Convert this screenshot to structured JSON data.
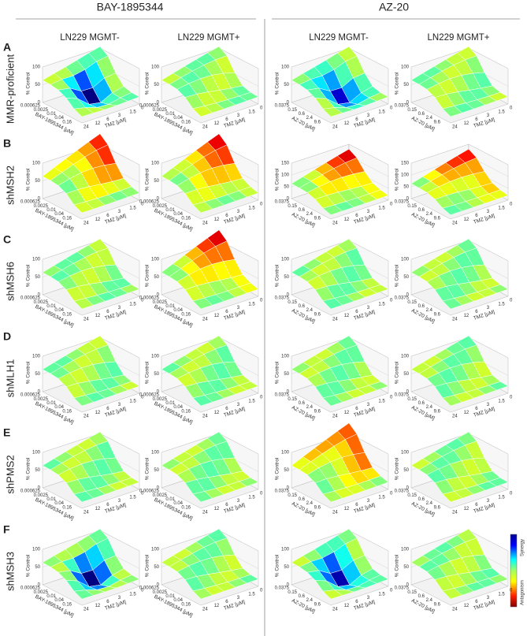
{
  "header": {
    "groups": [
      "BAY-1895344",
      "AZ-20"
    ],
    "columns": [
      "LN229 MGMT-",
      "LN229 MGMT+",
      "LN229 MGMT-",
      "LN229 MGMT+"
    ]
  },
  "rows": [
    {
      "letter": "A",
      "label": "MMR-proficient",
      "zticks": [
        [
          0,
          50,
          100
        ],
        [
          0,
          50,
          100
        ],
        [
          0,
          50,
          100
        ],
        [
          0,
          50,
          100
        ]
      ]
    },
    {
      "letter": "B",
      "label": "shMSH2",
      "zticks": [
        [
          0,
          50,
          100
        ],
        [
          0,
          50,
          100
        ],
        [
          0,
          50,
          100,
          150
        ],
        [
          0,
          50,
          100,
          150
        ]
      ]
    },
    {
      "letter": "C",
      "label": "shMSH6",
      "zticks": [
        [
          0,
          50,
          100
        ],
        [
          0,
          50,
          100
        ],
        [
          0,
          50,
          100
        ],
        [
          0,
          50,
          100
        ]
      ]
    },
    {
      "letter": "D",
      "label": "shMLH1",
      "zticks": [
        [
          0,
          50,
          100
        ],
        [
          0,
          50,
          100
        ],
        [
          0,
          50,
          100
        ],
        [
          0,
          50,
          100
        ]
      ]
    },
    {
      "letter": "E",
      "label": "shPMS2",
      "zticks": [
        [
          0,
          50,
          100
        ],
        [
          0,
          50,
          100
        ],
        [
          0,
          50,
          100
        ],
        [
          0,
          50,
          100
        ]
      ]
    },
    {
      "letter": "F",
      "label": "shMSH3",
      "zticks": [
        [
          0,
          50,
          100
        ],
        [
          0,
          50,
          100
        ],
        [
          0,
          50,
          100
        ],
        [
          0,
          50,
          100
        ]
      ]
    }
  ],
  "axes": {
    "z_title": "% Control",
    "tmz_title": "TMZ [µM]",
    "tmz_ticks": [
      24,
      12,
      6,
      3,
      1.5,
      0
    ],
    "drugs": [
      {
        "title": "BAY-1895344 [µM]",
        "ticks": [
          0.000625,
          0.0025,
          0.01,
          0.04,
          0.16
        ]
      },
      {
        "title": "AZ-20 [µM]",
        "ticks": [
          0.0375,
          0.15,
          0.6,
          2.4,
          9.6
        ]
      }
    ]
  },
  "colorbar": {
    "top": "Synergy",
    "bottom": "Antagonism"
  }
}
